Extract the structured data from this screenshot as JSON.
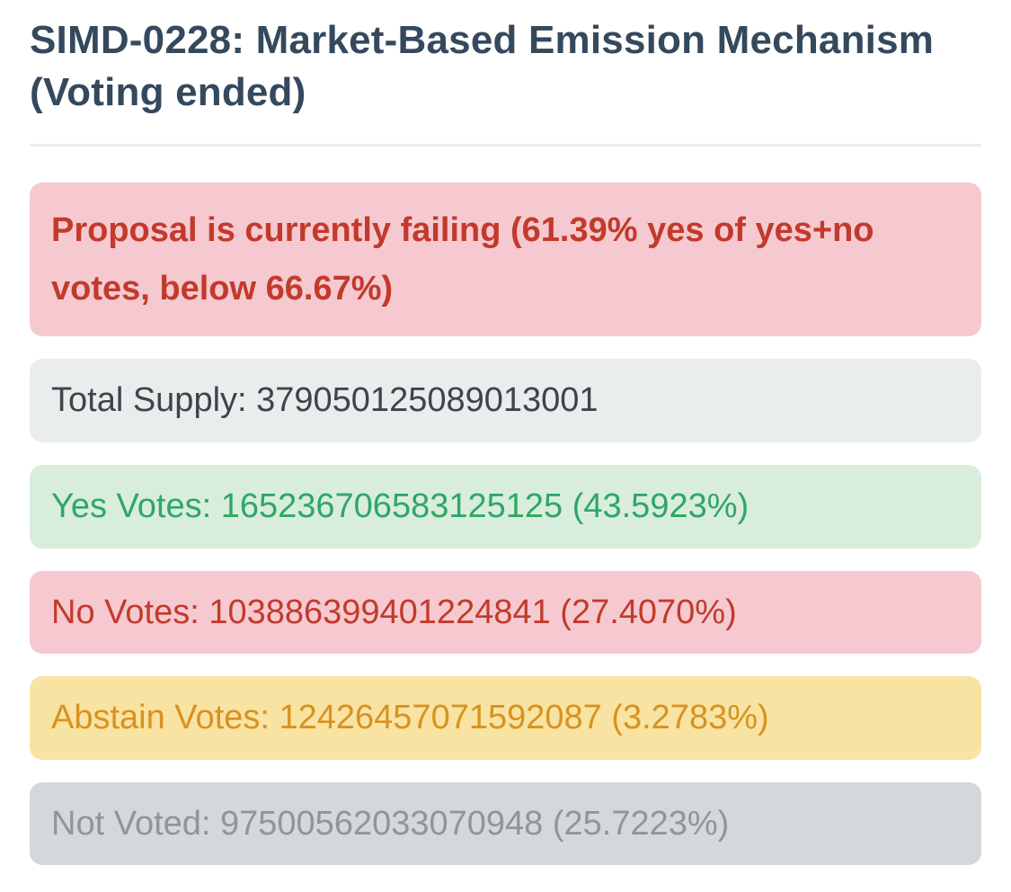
{
  "header": {
    "title": "SIMD-0228: Market-Based Emission Mechanism (Voting ended)"
  },
  "colors": {
    "title": "#34495e",
    "danger_bg": "#f5c9cf",
    "danger_fg": "#c23a2c",
    "neutral_bg": "#e9edee",
    "neutral_fg": "#3f4447",
    "success_bg": "#d9eddd",
    "success_fg": "#2ea766",
    "warning_bg": "#f8e3a2",
    "warning_fg": "#d8921f",
    "muted_bg": "#d4d8db",
    "muted_fg": "#8d969b"
  },
  "status": {
    "state": "failing",
    "yes_share_of_yes_no": "61.39%",
    "pass_threshold": "66.67%",
    "display": "Proposal is currently failing (61.39% yes of yes+no votes, below 66.67%)"
  },
  "results": {
    "total_supply": {
      "label": "Total Supply",
      "value": "379050125089013001",
      "display": "Total Supply: 379050125089013001"
    },
    "yes": {
      "label": "Yes Votes",
      "value": "165236706583125125",
      "percent": "43.5923%",
      "display": "Yes Votes: 165236706583125125 (43.5923%)"
    },
    "no": {
      "label": "No Votes",
      "value": "103886399401224841",
      "percent": "27.4070%",
      "display": "No Votes: 103886399401224841 (27.4070%)"
    },
    "abstain": {
      "label": "Abstain Votes",
      "value": "12426457071592087",
      "percent": "3.2783%",
      "display": "Abstain Votes: 12426457071592087 (3.2783%)"
    },
    "not_voted": {
      "label": "Not Voted",
      "value": "97500562033070948",
      "percent": "25.7223%",
      "display": "Not Voted: 97500562033070948 (25.7223%)"
    }
  }
}
